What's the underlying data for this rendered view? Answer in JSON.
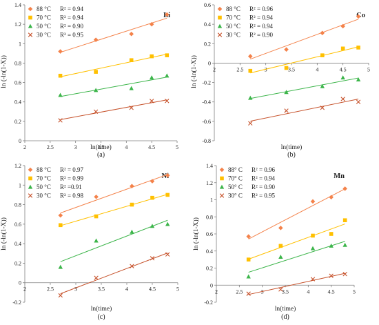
{
  "figure": {
    "colors": {
      "88": "#f4824a",
      "70": "#ffc000",
      "50": "#3cb54a",
      "30": "#c6512a"
    },
    "markers": {
      "88": "diamond",
      "70": "square",
      "50": "triangle",
      "30": "cross"
    }
  },
  "chart_data": [
    {
      "type": "scatter",
      "panel_label": "Li",
      "caption": "(a)",
      "xlabel": "ln(time)",
      "ylabel": "ln (-ln(1-X))",
      "xlim": [
        2,
        5
      ],
      "ylim": [
        0,
        1.4
      ],
      "xticks": [
        "2",
        "2.5",
        "3",
        "3.5",
        "4",
        "4.5",
        "5"
      ],
      "yticks": [
        "0",
        "0.2",
        "0.4",
        "0.6",
        "0.8",
        "1",
        "1.2",
        "1.4"
      ],
      "x_axis_at": 0,
      "legend_position": "top-left",
      "trendlines": true,
      "series": [
        {
          "name": "88 °C",
          "r2": "R² = 0.94",
          "x": [
            2.7,
            3.4,
            4.1,
            4.5,
            4.8
          ],
          "y": [
            0.92,
            1.04,
            1.1,
            1.2,
            1.3
          ]
        },
        {
          "name": "70 °C",
          "r2": "R² = 0.94",
          "x": [
            2.7,
            3.4,
            4.1,
            4.5,
            4.8
          ],
          "y": [
            0.67,
            0.71,
            0.83,
            0.87,
            0.88
          ]
        },
        {
          "name": "50 °C",
          "r2": "R² = 0.90",
          "x": [
            2.7,
            3.4,
            4.1,
            4.5,
            4.8
          ],
          "y": [
            0.47,
            0.52,
            0.54,
            0.65,
            0.67
          ]
        },
        {
          "name": "30 °C",
          "r2": "R² = 0.95",
          "x": [
            2.7,
            3.4,
            4.1,
            4.5,
            4.8
          ],
          "y": [
            0.21,
            0.3,
            0.34,
            0.41,
            0.41
          ]
        }
      ]
    },
    {
      "type": "scatter",
      "panel_label": "Co",
      "caption": "(b)",
      "xlabel": "ln(time)",
      "ylabel": "ln (-ln(1-X))",
      "xlim": [
        2,
        5
      ],
      "ylim": [
        -0.8,
        0.6
      ],
      "xticks": [
        "2",
        "2.5",
        "3",
        "3.5",
        "4",
        "4.5",
        "5"
      ],
      "yticks": [
        "-0.8",
        "-0.6",
        "-0.4",
        "-0.2",
        "0",
        "0.2",
        "0.4",
        "0.6"
      ],
      "x_axis_at": 0,
      "legend_position": "top-left",
      "trendlines": true,
      "series": [
        {
          "name": "88 °C",
          "r2": "R² = 0.96",
          "x": [
            2.7,
            3.4,
            4.1,
            4.5,
            4.8
          ],
          "y": [
            0.07,
            0.14,
            0.31,
            0.38,
            0.48
          ]
        },
        {
          "name": "70 °C",
          "r2": "R² = 0.94",
          "x": [
            2.7,
            3.4,
            4.1,
            4.5,
            4.8
          ],
          "y": [
            -0.08,
            -0.05,
            0.08,
            0.15,
            0.16
          ]
        },
        {
          "name": "50 °C",
          "r2": "R² = 0.94",
          "x": [
            2.7,
            3.4,
            4.1,
            4.5,
            4.8
          ],
          "y": [
            -0.36,
            -0.3,
            -0.24,
            -0.15,
            -0.17
          ]
        },
        {
          "name": "30 °C",
          "r2": "R² = 0.90",
          "x": [
            2.7,
            3.4,
            4.1,
            4.5,
            4.8
          ],
          "y": [
            -0.62,
            -0.49,
            -0.46,
            -0.37,
            -0.4
          ]
        }
      ]
    },
    {
      "type": "scatter",
      "panel_label": "Ni",
      "caption": "(c)",
      "xlabel": "ln(time)",
      "ylabel": "ln (-ln(1-X))",
      "xlim": [
        2,
        5
      ],
      "ylim": [
        -0.2,
        1.2
      ],
      "xticks": [
        "2",
        "2.5",
        "3",
        "3.5",
        "4",
        "4.5",
        "5"
      ],
      "yticks": [
        "-0.2",
        "0",
        "0.2",
        "0.4",
        "0.6",
        "0.8",
        "1",
        "1.2"
      ],
      "x_axis_at": 0,
      "legend_position": "top-left",
      "trendlines": true,
      "series": [
        {
          "name": "88 °C",
          "r2": "R² = 0.97",
          "x": [
            2.7,
            3.4,
            4.1,
            4.5,
            4.8
          ],
          "y": [
            0.69,
            0.88,
            0.99,
            1.04,
            1.1
          ]
        },
        {
          "name": "70 °C",
          "r2": "R² = 0.99",
          "x": [
            2.7,
            3.4,
            4.1,
            4.5,
            4.8
          ],
          "y": [
            0.59,
            0.68,
            0.8,
            0.87,
            0.9
          ]
        },
        {
          "name": "50 °C",
          "r2": "R² =0.91",
          "x": [
            2.7,
            3.4,
            4.1,
            4.5,
            4.8
          ],
          "y": [
            0.16,
            0.43,
            0.52,
            0.58,
            0.6
          ]
        },
        {
          "name": "30 °C",
          "r2": "R² = 0.98",
          "x": [
            2.7,
            3.4,
            4.1,
            4.5,
            4.8
          ],
          "y": [
            -0.13,
            0.05,
            0.17,
            0.25,
            0.29
          ]
        }
      ]
    },
    {
      "type": "scatter",
      "panel_label": "Mn",
      "caption": "(d)",
      "xlabel": "ln(time)",
      "ylabel": "ln (-ln(1-X))",
      "xlim": [
        2,
        5
      ],
      "ylim": [
        -0.2,
        1.4
      ],
      "xticks": [
        "2",
        "2.5",
        "3",
        "3.5",
        "4",
        "4.5",
        "5"
      ],
      "yticks": [
        "-0.2",
        "0",
        "0.2",
        "0.4",
        "0.6",
        "0.8",
        "1",
        "1.2",
        "1.4"
      ],
      "x_axis_at": 0,
      "legend_position": "top-left",
      "trendlines": true,
      "series": [
        {
          "name": "88° C",
          "r2": "R² = 0.96",
          "x": [
            2.7,
            3.4,
            4.1,
            4.5,
            4.8
          ],
          "y": [
            0.57,
            0.67,
            0.98,
            1.03,
            1.13
          ]
        },
        {
          "name": "70° C",
          "r2": "R² = 0.94",
          "x": [
            2.7,
            3.4,
            4.1,
            4.5,
            4.8
          ],
          "y": [
            0.3,
            0.46,
            0.58,
            0.6,
            0.76
          ]
        },
        {
          "name": "50° C",
          "r2": "R² = 0.90",
          "x": [
            2.7,
            3.4,
            4.1,
            4.5,
            4.8
          ],
          "y": [
            0.1,
            0.33,
            0.43,
            0.46,
            0.47
          ]
        },
        {
          "name": "30° C",
          "r2": "R² = 0.95",
          "x": [
            2.7,
            3.4,
            4.1,
            4.5,
            4.8
          ],
          "y": [
            -0.1,
            -0.05,
            0.07,
            0.11,
            0.13
          ]
        }
      ]
    }
  ]
}
